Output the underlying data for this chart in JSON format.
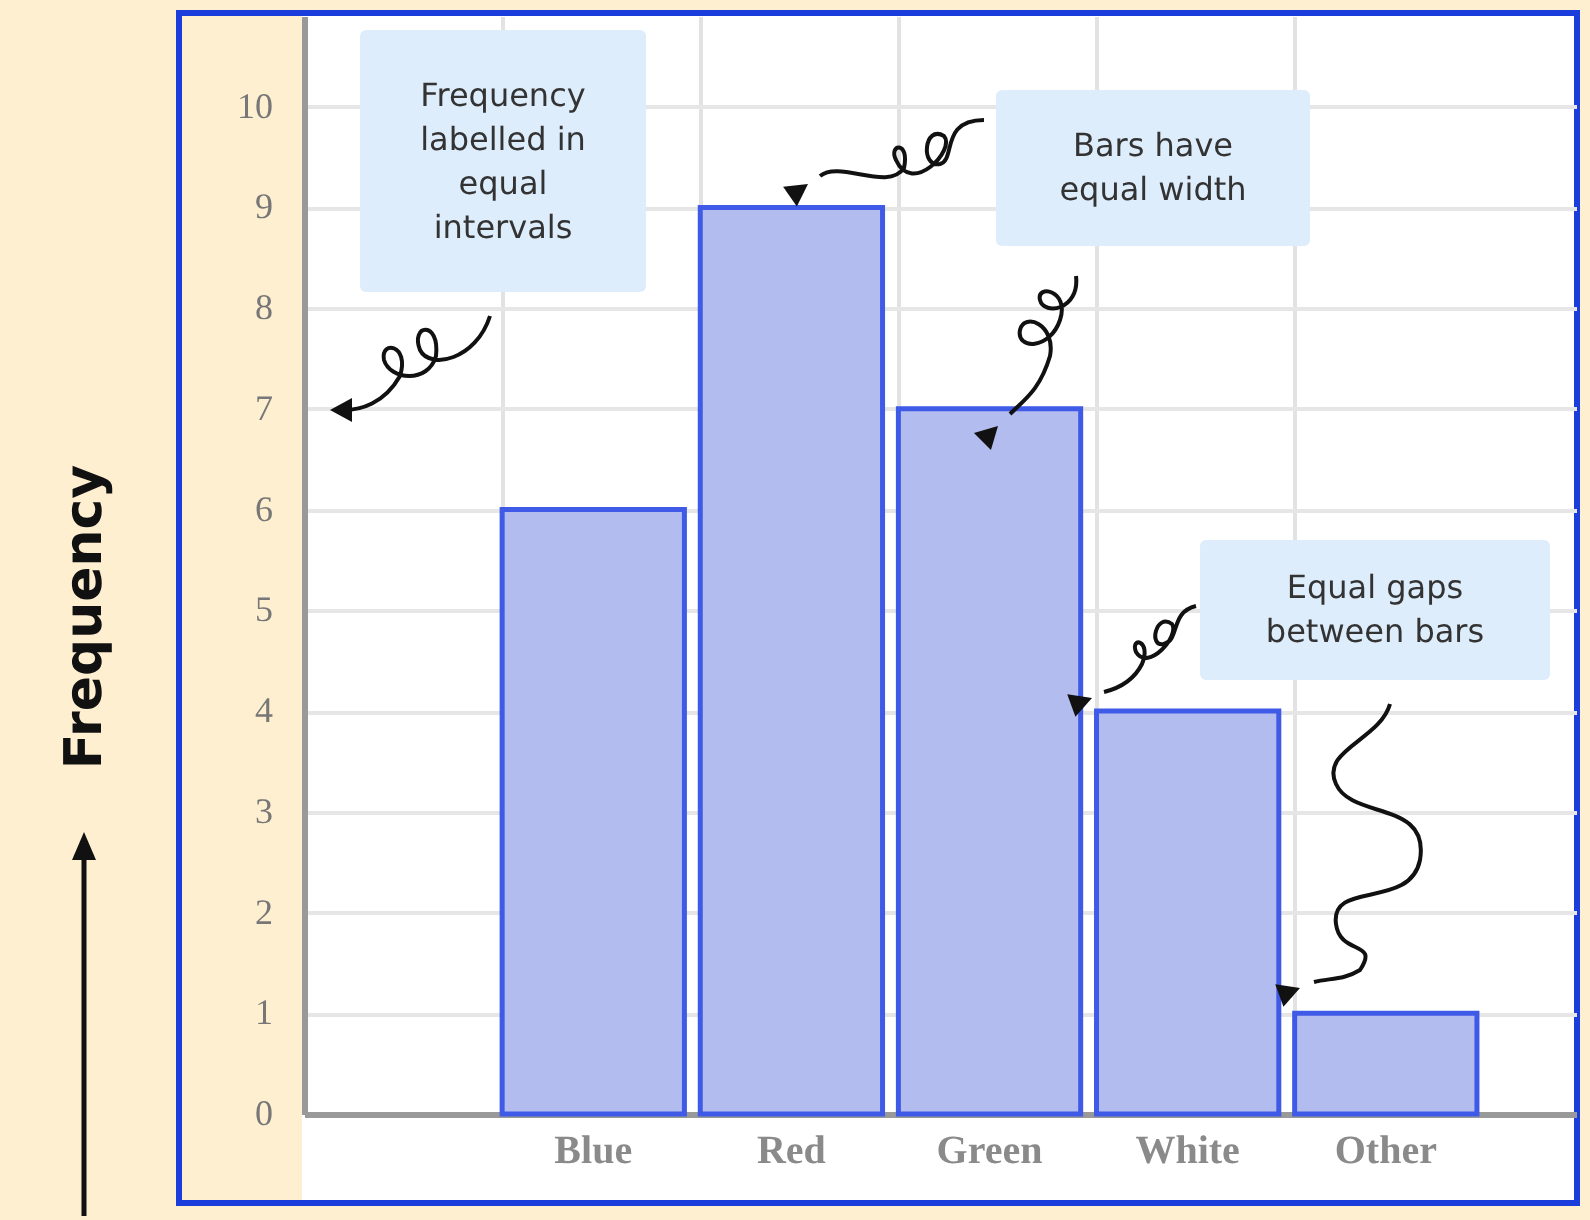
{
  "chart_data": {
    "type": "bar",
    "ylabel": "Frequency",
    "categories": [
      null,
      "Blue",
      "Red",
      "Green",
      "White",
      "Other"
    ],
    "values": [
      null,
      6,
      9,
      7,
      4,
      1
    ],
    "color": "#b3bcee",
    "ylim": [
      0,
      10.9
    ],
    "yticks": [
      0,
      1,
      2,
      3,
      4,
      5,
      6,
      7,
      8,
      9,
      10
    ],
    "grid": true,
    "annotations": [
      "Frequency labelled in equal intervals",
      "Bars have equal width",
      "Equal gaps between bars"
    ]
  }
}
